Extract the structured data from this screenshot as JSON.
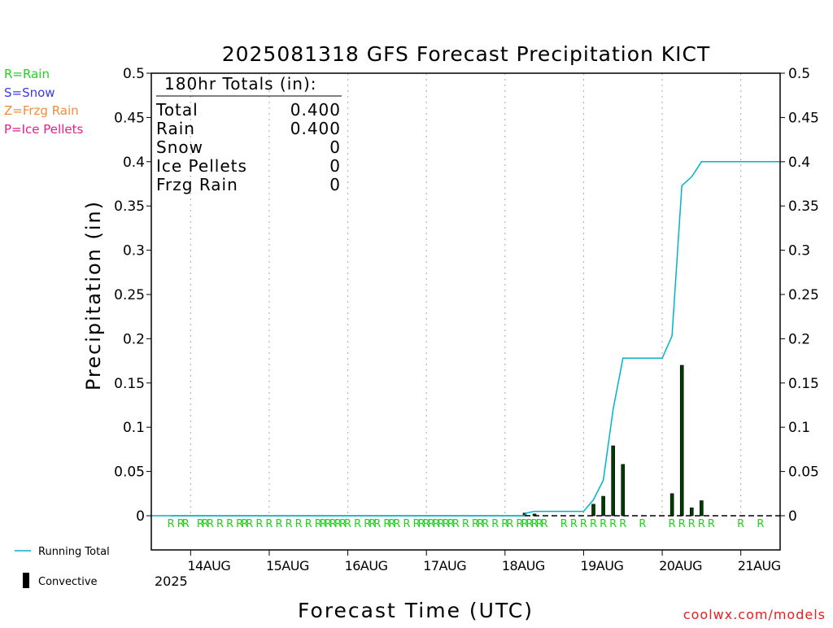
{
  "chart_data": {
    "type": "bar",
    "title": "2025081318 GFS Forecast Precipitation KICT",
    "xlabel": "Forecast Time (UTC)",
    "ylabel": "Precipitation (in)",
    "ylim": [
      0,
      0.5
    ],
    "xlim_hours": [
      -6,
      186
    ],
    "yticks": [
      "0.5",
      "0.45",
      "0.4",
      "0.35",
      "0.3",
      "0.25",
      "0.2",
      "0.15",
      "0.1",
      "0.05",
      "0"
    ],
    "xticks": [
      {
        "hour": 6,
        "label": "14AUG"
      },
      {
        "hour": 30,
        "label": "15AUG"
      },
      {
        "hour": 54,
        "label": "16AUG"
      },
      {
        "hour": 78,
        "label": "17AUG"
      },
      {
        "hour": 102,
        "label": "18AUG"
      },
      {
        "hour": 126,
        "label": "19AUG"
      },
      {
        "hour": 150,
        "label": "20AUG"
      },
      {
        "hour": 174,
        "label": "21AUG"
      }
    ],
    "year_label": "2025",
    "legend": {
      "ptypes": [
        {
          "text": "R=Rain",
          "color": "#1ed31e"
        },
        {
          "text": "S=Snow",
          "color": "#3a3ae6"
        },
        {
          "text": "Z=Frzg Rain",
          "color": "#f08c3c"
        },
        {
          "text": "P=Ice Pellets",
          "color": "#e61e8c"
        }
      ],
      "running_total": "Running Total",
      "convective": "Convective"
    },
    "totals": {
      "header": "180hr Totals (in):",
      "rows": [
        {
          "label": "Total",
          "value": "0.400"
        },
        {
          "label": "Rain",
          "value": "0.400"
        },
        {
          "label": "Snow",
          "value": "0"
        },
        {
          "label": "Ice Pellets",
          "value": "0"
        },
        {
          "label": "Frzg Rain",
          "value": "0"
        }
      ]
    },
    "series": [
      {
        "name": "Running Total",
        "color": "#00b4c8",
        "x_hours": [
          0,
          108,
          108.5,
          111,
          114,
          117,
          120,
          123,
          126,
          129,
          132,
          135,
          138,
          141,
          144,
          147,
          150,
          153,
          156,
          159,
          162,
          165,
          168,
          171,
          174,
          177,
          180,
          186
        ],
        "values": [
          0,
          0,
          0.003,
          0.005,
          0.005,
          0.005,
          0.005,
          0.005,
          0.005,
          0.018,
          0.04,
          0.12,
          0.178,
          0.178,
          0.178,
          0.178,
          0.178,
          0.203,
          0.373,
          0.383,
          0.4,
          0.4,
          0.4,
          0.4,
          0.4,
          0.4,
          0.4,
          0.4
        ]
      }
    ],
    "bars": {
      "name": "Convective",
      "x_hours": [
        108,
        111,
        129,
        132,
        135,
        138,
        153,
        156,
        159,
        162
      ],
      "values": [
        0.003,
        0.002,
        0.013,
        0.022,
        0.079,
        0.058,
        0.025,
        0.17,
        0.009,
        0.017
      ]
    },
    "ptype_hours": [
      0,
      3,
      4.5,
      9,
      10.5,
      12,
      15,
      18,
      21,
      22.5,
      24,
      27,
      30,
      33,
      36,
      39,
      42,
      45,
      46.5,
      48,
      49.5,
      51,
      52.5,
      54,
      57,
      60,
      61.5,
      63,
      66,
      67.5,
      69,
      72,
      75,
      76.5,
      78,
      79.5,
      81,
      82.5,
      84,
      85.5,
      87,
      90,
      93,
      94.5,
      96,
      99,
      102,
      103.5,
      106.5,
      108,
      109.5,
      111,
      112.5,
      114,
      120,
      123,
      126,
      129,
      132,
      135,
      138,
      144,
      153,
      156,
      159,
      162,
      165,
      174,
      180
    ],
    "ptype_symbol": "R",
    "ptype_color": "#1ed31e",
    "credit": "coolwx.com/models"
  }
}
